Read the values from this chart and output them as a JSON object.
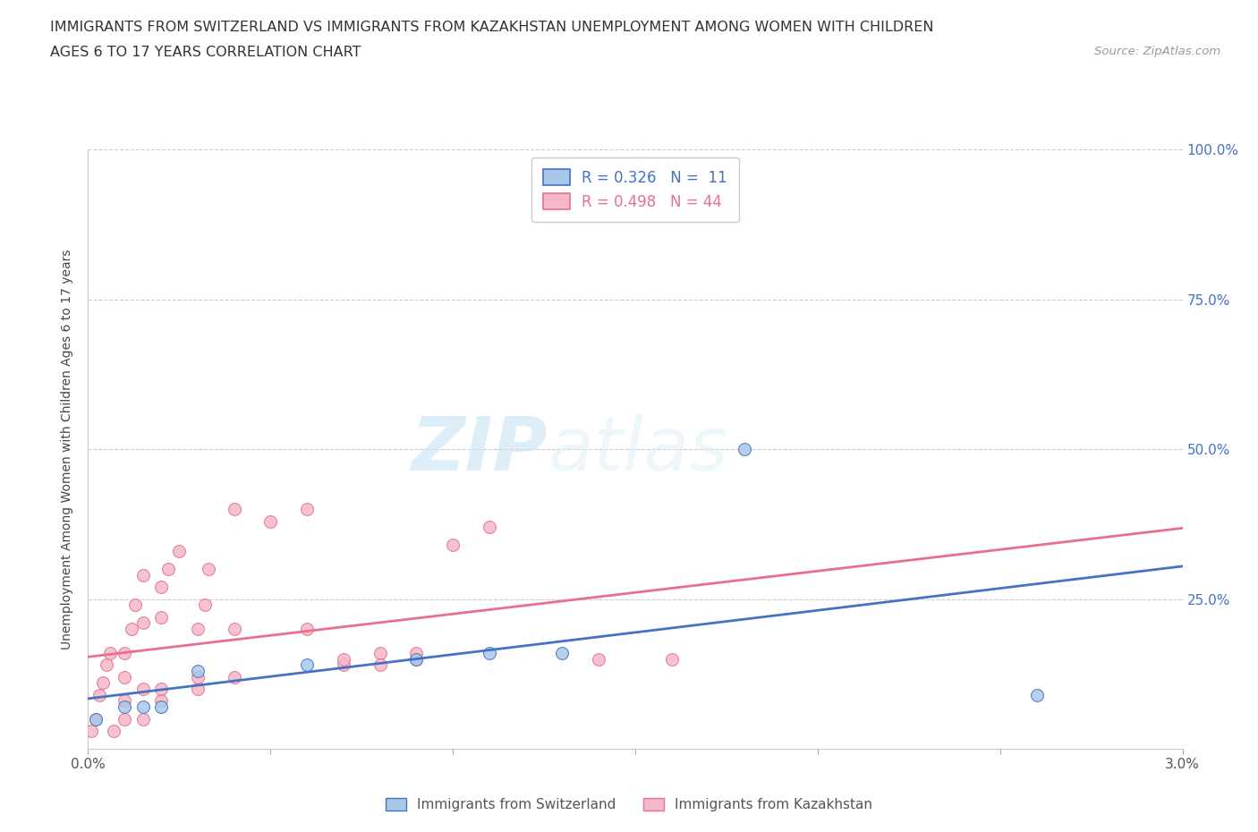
{
  "title_line1": "IMMIGRANTS FROM SWITZERLAND VS IMMIGRANTS FROM KAZAKHSTAN UNEMPLOYMENT AMONG WOMEN WITH CHILDREN",
  "title_line2": "AGES 6 TO 17 YEARS CORRELATION CHART",
  "source": "Source: ZipAtlas.com",
  "ylabel": "Unemployment Among Women with Children Ages 6 to 17 years",
  "xlim": [
    0.0,
    0.03
  ],
  "ylim": [
    0.0,
    1.0
  ],
  "yticks": [
    0.0,
    0.25,
    0.5,
    0.75,
    1.0
  ],
  "yticklabels": [
    "",
    "25.0%",
    "50.0%",
    "75.0%",
    "100.0%"
  ],
  "grid_color": "#cccccc",
  "background_color": "#ffffff",
  "watermark_text": "ZIP",
  "watermark_text2": "atlas",
  "legend_R1": "R = 0.326",
  "legend_N1": "N =  11",
  "legend_R2": "R = 0.498",
  "legend_N2": "N = 44",
  "color_switzerland": "#a8c8e8",
  "color_kazakhstan": "#f4b8c8",
  "line_color_switzerland": "#4472c4",
  "line_color_kazakhstan": "#e8708c",
  "label_switzerland": "Immigrants from Switzerland",
  "label_kazakhstan": "Immigrants from Kazakhstan",
  "scatter_switzerland": [
    [
      0.0002,
      0.05
    ],
    [
      0.001,
      0.07
    ],
    [
      0.0015,
      0.07
    ],
    [
      0.002,
      0.07
    ],
    [
      0.003,
      0.13
    ],
    [
      0.006,
      0.14
    ],
    [
      0.009,
      0.15
    ],
    [
      0.011,
      0.16
    ],
    [
      0.013,
      0.16
    ],
    [
      0.018,
      0.5
    ],
    [
      0.026,
      0.09
    ]
  ],
  "scatter_kazakhstan": [
    [
      0.0001,
      0.03
    ],
    [
      0.0002,
      0.05
    ],
    [
      0.0003,
      0.09
    ],
    [
      0.0004,
      0.11
    ],
    [
      0.0005,
      0.14
    ],
    [
      0.0006,
      0.16
    ],
    [
      0.0007,
      0.03
    ],
    [
      0.001,
      0.05
    ],
    [
      0.001,
      0.08
    ],
    [
      0.001,
      0.12
    ],
    [
      0.001,
      0.16
    ],
    [
      0.0012,
      0.2
    ],
    [
      0.0013,
      0.24
    ],
    [
      0.0015,
      0.05
    ],
    [
      0.0015,
      0.1
    ],
    [
      0.0015,
      0.21
    ],
    [
      0.0015,
      0.29
    ],
    [
      0.002,
      0.08
    ],
    [
      0.002,
      0.1
    ],
    [
      0.002,
      0.22
    ],
    [
      0.002,
      0.27
    ],
    [
      0.0022,
      0.3
    ],
    [
      0.0025,
      0.33
    ],
    [
      0.003,
      0.1
    ],
    [
      0.003,
      0.12
    ],
    [
      0.003,
      0.2
    ],
    [
      0.0032,
      0.24
    ],
    [
      0.0033,
      0.3
    ],
    [
      0.004,
      0.12
    ],
    [
      0.004,
      0.2
    ],
    [
      0.004,
      0.4
    ],
    [
      0.005,
      0.38
    ],
    [
      0.006,
      0.2
    ],
    [
      0.006,
      0.4
    ],
    [
      0.007,
      0.14
    ],
    [
      0.007,
      0.15
    ],
    [
      0.008,
      0.16
    ],
    [
      0.008,
      0.14
    ],
    [
      0.009,
      0.15
    ],
    [
      0.009,
      0.16
    ],
    [
      0.01,
      0.34
    ],
    [
      0.011,
      0.37
    ],
    [
      0.014,
      0.15
    ],
    [
      0.016,
      0.15
    ]
  ]
}
